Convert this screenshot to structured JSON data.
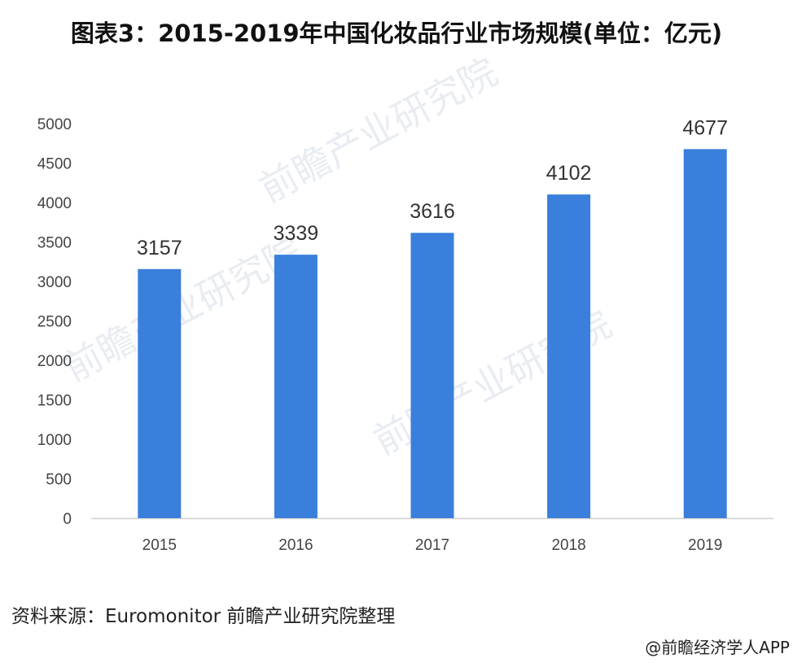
{
  "chart_data": {
    "type": "bar",
    "title": "图表3：2015-2019年中国化妆品行业市场规模(单位：亿元)",
    "categories": [
      "2015",
      "2016",
      "2017",
      "2018",
      "2019"
    ],
    "values": [
      3157,
      3339,
      3616,
      4102,
      4677
    ],
    "data_labels": [
      "3157",
      "3339",
      "3616",
      "4102",
      "4677"
    ],
    "yticks": [
      "0",
      "500",
      "1000",
      "1500",
      "2000",
      "2500",
      "3000",
      "3500",
      "4000",
      "4500",
      "5000"
    ],
    "ylim": [
      0,
      5000
    ],
    "xlabel": "",
    "ylabel": "",
    "grid": false,
    "bar_color": "#3a7fdc"
  },
  "source": "资料来源：Euromonitor 前瞻产业研究院整理",
  "credit": "@前瞻经济学人APP",
  "watermark": "前瞻产业研究院"
}
